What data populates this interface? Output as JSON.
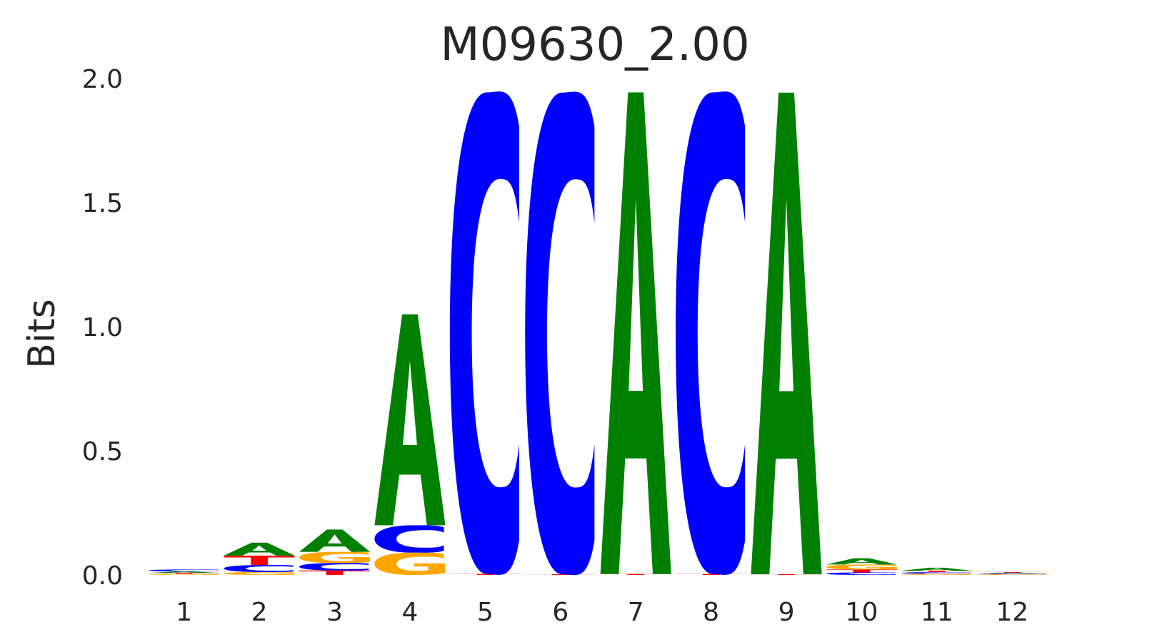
{
  "chart_data": {
    "type": "sequence-logo",
    "title": "M09630_2.00",
    "ylabel": "Bits",
    "xlabel": "",
    "ylim": [
      0,
      2
    ],
    "yticks": [
      "0.0",
      "0.5",
      "1.0",
      "1.5",
      "2.0"
    ],
    "xticks": [
      "1",
      "2",
      "3",
      "4",
      "5",
      "6",
      "7",
      "8",
      "9",
      "10",
      "11",
      "12"
    ],
    "grid": false,
    "colors": {
      "A": "#008000",
      "C": "#0000ff",
      "G": "#ffa500",
      "T": "#ff0000"
    },
    "positions": [
      {
        "pos": 1,
        "letters": [
          {
            "base": "G",
            "bits": 0.004
          },
          {
            "base": "T",
            "bits": 0.004
          },
          {
            "base": "A",
            "bits": 0.006
          },
          {
            "base": "C",
            "bits": 0.008
          }
        ]
      },
      {
        "pos": 2,
        "letters": [
          {
            "base": "G",
            "bits": 0.012
          },
          {
            "base": "C",
            "bits": 0.028
          },
          {
            "base": "T",
            "bits": 0.038
          },
          {
            "base": "A",
            "bits": 0.052
          }
        ]
      },
      {
        "pos": 3,
        "letters": [
          {
            "base": "T",
            "bits": 0.018
          },
          {
            "base": "C",
            "bits": 0.03
          },
          {
            "base": "G",
            "bits": 0.045
          },
          {
            "base": "A",
            "bits": 0.09
          }
        ]
      },
      {
        "pos": 4,
        "letters": [
          {
            "base": "G",
            "bits": 0.09
          },
          {
            "base": "C",
            "bits": 0.11
          },
          {
            "base": "A",
            "bits": 0.85
          }
        ]
      },
      {
        "pos": 5,
        "letters": [
          {
            "base": "T",
            "bits": 0.004
          },
          {
            "base": "C",
            "bits": 1.94
          }
        ]
      },
      {
        "pos": 6,
        "letters": [
          {
            "base": "T",
            "bits": 0.003
          },
          {
            "base": "C",
            "bits": 1.94
          }
        ]
      },
      {
        "pos": 7,
        "letters": [
          {
            "base": "T",
            "bits": 0.004
          },
          {
            "base": "A",
            "bits": 1.94
          }
        ]
      },
      {
        "pos": 8,
        "letters": [
          {
            "base": "T",
            "bits": 0.004
          },
          {
            "base": "C",
            "bits": 1.94
          }
        ]
      },
      {
        "pos": 9,
        "letters": [
          {
            "base": "T",
            "bits": 0.003
          },
          {
            "base": "A",
            "bits": 1.94
          }
        ]
      },
      {
        "pos": 10,
        "letters": [
          {
            "base": "C",
            "bits": 0.01
          },
          {
            "base": "T",
            "bits": 0.012
          },
          {
            "base": "G",
            "bits": 0.02
          },
          {
            "base": "A",
            "bits": 0.025
          }
        ]
      },
      {
        "pos": 11,
        "letters": [
          {
            "base": "G",
            "bits": 0.005
          },
          {
            "base": "C",
            "bits": 0.006
          },
          {
            "base": "T",
            "bits": 0.006
          },
          {
            "base": "A",
            "bits": 0.012
          }
        ]
      },
      {
        "pos": 12,
        "letters": [
          {
            "base": "G",
            "bits": 0.003
          },
          {
            "base": "C",
            "bits": 0.003
          },
          {
            "base": "A",
            "bits": 0.003
          },
          {
            "base": "T",
            "bits": 0.003
          }
        ]
      }
    ]
  }
}
